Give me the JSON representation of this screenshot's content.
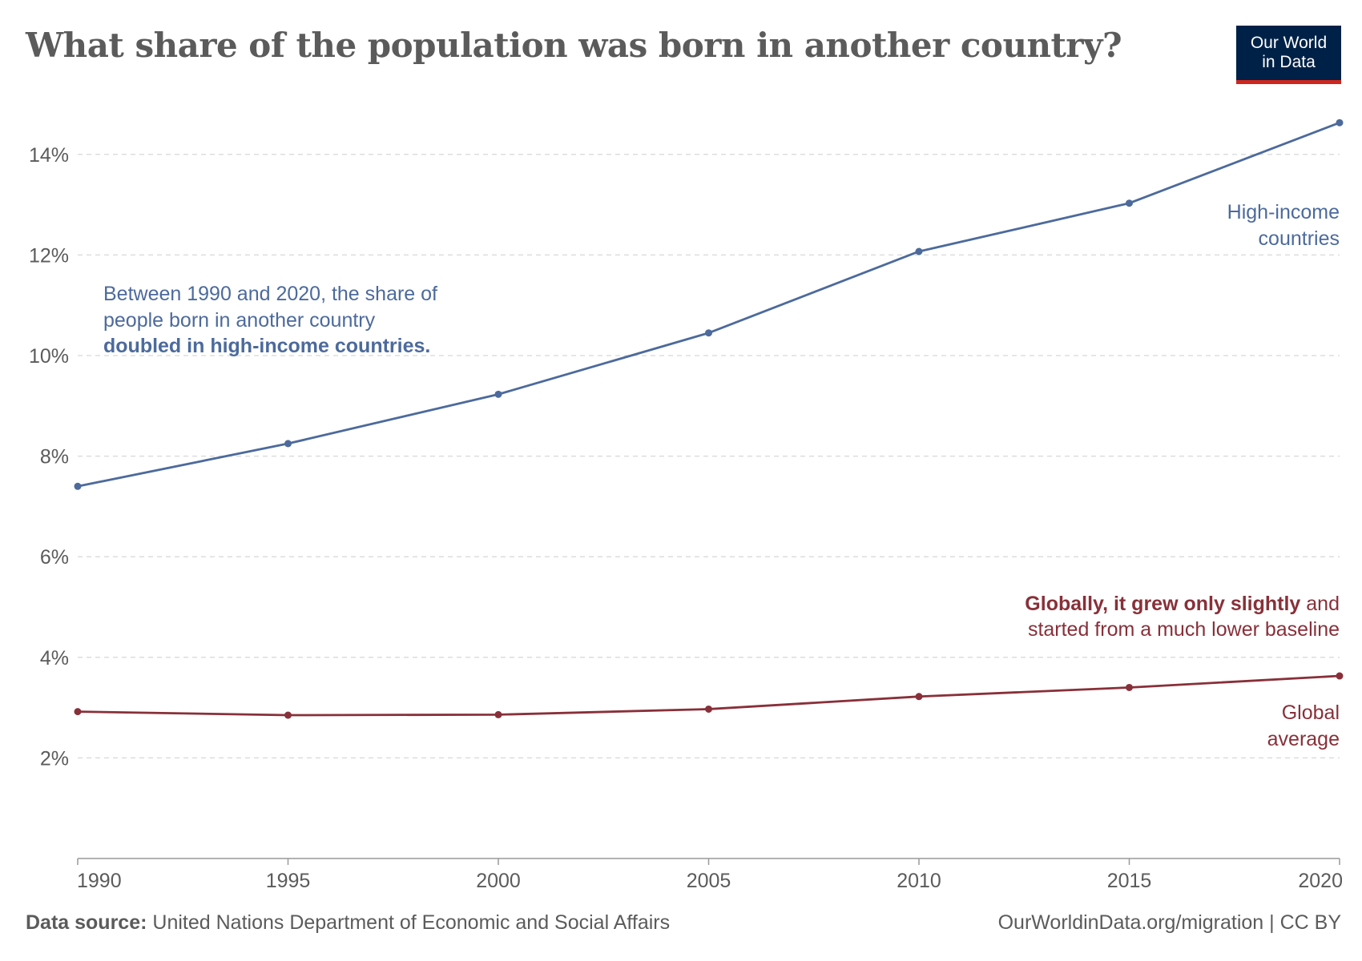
{
  "header": {
    "title": "What share of the population was born in another country?",
    "logo_line1": "Our World",
    "logo_line2": "in Data"
  },
  "colors": {
    "high_income": "#4c6a9c",
    "global": "#883039",
    "grid": "#dddddd",
    "axis_text": "#5b5b5b",
    "logo_bg": "#002147",
    "logo_bar": "#ce261e"
  },
  "chart_data": {
    "type": "line",
    "title": "What share of the population was born in another country?",
    "x": [
      1990,
      1995,
      2000,
      2005,
      2010,
      2015,
      2020
    ],
    "xlim": [
      1990,
      2020
    ],
    "ylim": [
      0,
      15
    ],
    "y_ticks": [
      2,
      4,
      6,
      8,
      10,
      12,
      14
    ],
    "y_tick_labels": [
      "2%",
      "4%",
      "6%",
      "8%",
      "10%",
      "12%",
      "14%"
    ],
    "x_tick_labels": [
      "1990",
      "1995",
      "2000",
      "2005",
      "2010",
      "2015",
      "2020"
    ],
    "grid": "horizontal dashed",
    "series": [
      {
        "name": "High-income countries",
        "label_lines": [
          "High-income",
          "countries"
        ],
        "values": [
          7.4,
          8.25,
          9.23,
          10.45,
          12.07,
          13.03,
          14.63
        ]
      },
      {
        "name": "Global average",
        "label_lines": [
          "Global",
          "average"
        ],
        "values": [
          2.92,
          2.85,
          2.86,
          2.97,
          3.22,
          3.4,
          3.63
        ]
      }
    ],
    "annotations": {
      "high_income": {
        "line1": "Between 1990 and 2020, the share of",
        "line2": "people born in another country",
        "line3_bold": "doubled in high-income countries."
      },
      "global": {
        "line1_bold": "Globally, it grew only slightly",
        "line1_rest": " and",
        "line2": "started from a much lower baseline"
      }
    }
  },
  "footer": {
    "source_label": "Data source:",
    "source_text": " United Nations Department of Economic and Social Affairs",
    "credit": "OurWorldinData.org/migration | CC BY"
  }
}
